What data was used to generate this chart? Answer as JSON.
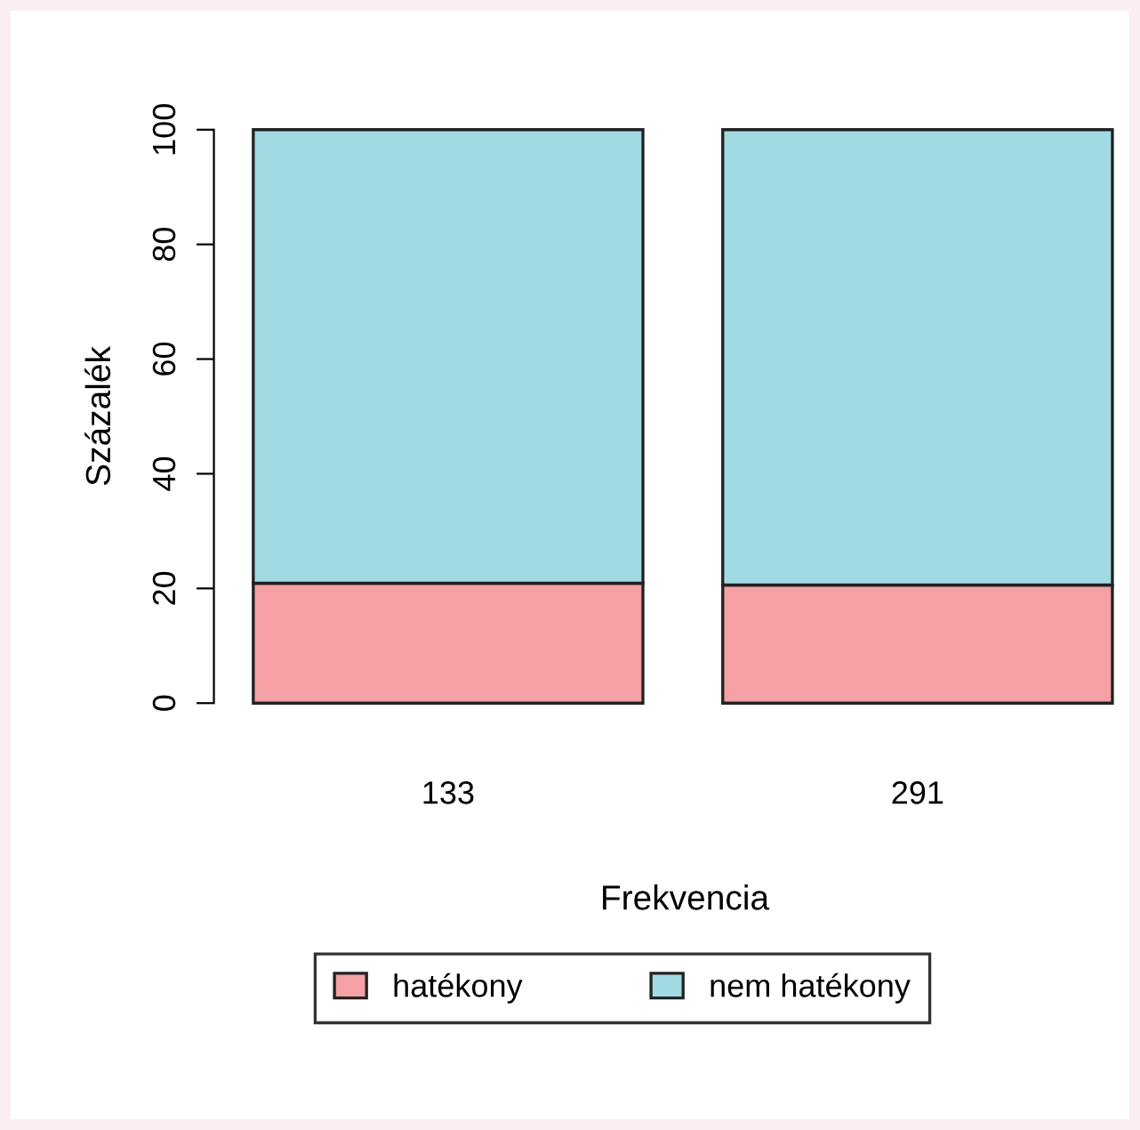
{
  "chart_data": {
    "type": "bar",
    "stacked": true,
    "xlabel": "Frekvencia",
    "ylabel": "Százalék",
    "categories": [
      "133",
      "291"
    ],
    "series": [
      {
        "name": "hatékony",
        "color": "#f4a0a4",
        "values": [
          20.9,
          20.6
        ]
      },
      {
        "name": "nem hatékony",
        "color": "#a2dae4",
        "values": [
          79.1,
          79.4
        ]
      }
    ],
    "ylim": [
      0,
      100
    ],
    "yticks": [
      0,
      20,
      40,
      60,
      80,
      100
    ],
    "grid": false,
    "legend": "bottom"
  }
}
